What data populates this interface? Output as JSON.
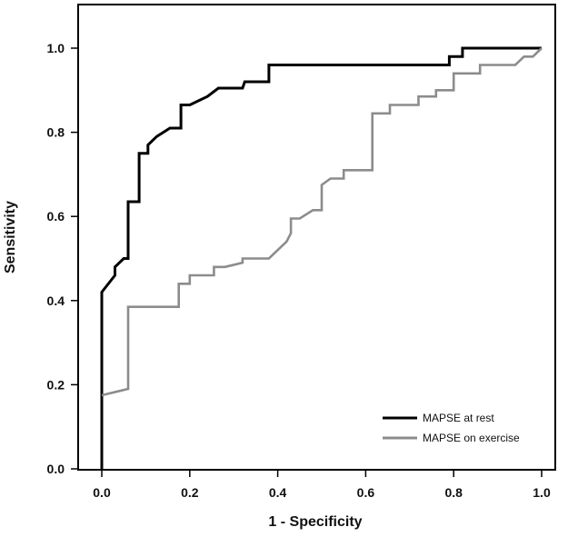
{
  "chart_data": {
    "type": "line",
    "title": "",
    "xlabel": "1 - Specificity",
    "ylabel": "Sensitivity",
    "xlim": [
      0,
      1
    ],
    "ylim": [
      0,
      1
    ],
    "x_ticks": [
      "0.0",
      "0.2",
      "0.4",
      "0.6",
      "0.8",
      "1.0"
    ],
    "y_ticks": [
      "0.0",
      "0.2",
      "0.4",
      "0.6",
      "0.8",
      "1.0"
    ],
    "grid": false,
    "legend_position": "bottom-right",
    "series": [
      {
        "name": "MAPSE at rest",
        "color": "#000000",
        "x": [
          0.0,
          0.0,
          0.03,
          0.03,
          0.05,
          0.05,
          0.06,
          0.06,
          0.085,
          0.085,
          0.105,
          0.105,
          0.125,
          0.125,
          0.155,
          0.155,
          0.18,
          0.18,
          0.2,
          0.24,
          0.265,
          0.32,
          0.325,
          0.35,
          0.38,
          0.38,
          0.79,
          0.79,
          0.81,
          0.82,
          0.82,
          0.99,
          1.0
        ],
        "y": [
          0.0,
          0.42,
          0.46,
          0.48,
          0.5,
          0.5,
          0.5,
          0.635,
          0.635,
          0.75,
          0.75,
          0.77,
          0.79,
          0.79,
          0.81,
          0.81,
          0.81,
          0.865,
          0.865,
          0.885,
          0.905,
          0.905,
          0.92,
          0.92,
          0.92,
          0.96,
          0.96,
          0.98,
          0.98,
          0.98,
          1.0,
          1.0,
          1.0
        ]
      },
      {
        "name": "MAPSE on exercise",
        "color": "#8c8c8c",
        "x": [
          0.0,
          0.06,
          0.06,
          0.175,
          0.175,
          0.2,
          0.2,
          0.255,
          0.255,
          0.28,
          0.32,
          0.32,
          0.38,
          0.4,
          0.42,
          0.43,
          0.43,
          0.45,
          0.48,
          0.5,
          0.5,
          0.52,
          0.55,
          0.55,
          0.58,
          0.615,
          0.615,
          0.655,
          0.655,
          0.72,
          0.72,
          0.76,
          0.76,
          0.8,
          0.8,
          0.86,
          0.86,
          0.94,
          0.96,
          0.98,
          1.0
        ],
        "y": [
          0.175,
          0.19,
          0.385,
          0.385,
          0.44,
          0.44,
          0.46,
          0.46,
          0.48,
          0.48,
          0.49,
          0.5,
          0.5,
          0.52,
          0.54,
          0.56,
          0.595,
          0.595,
          0.615,
          0.615,
          0.675,
          0.69,
          0.69,
          0.71,
          0.71,
          0.71,
          0.845,
          0.845,
          0.865,
          0.865,
          0.885,
          0.885,
          0.9,
          0.9,
          0.94,
          0.94,
          0.96,
          0.96,
          0.98,
          0.98,
          1.0
        ]
      }
    ]
  }
}
